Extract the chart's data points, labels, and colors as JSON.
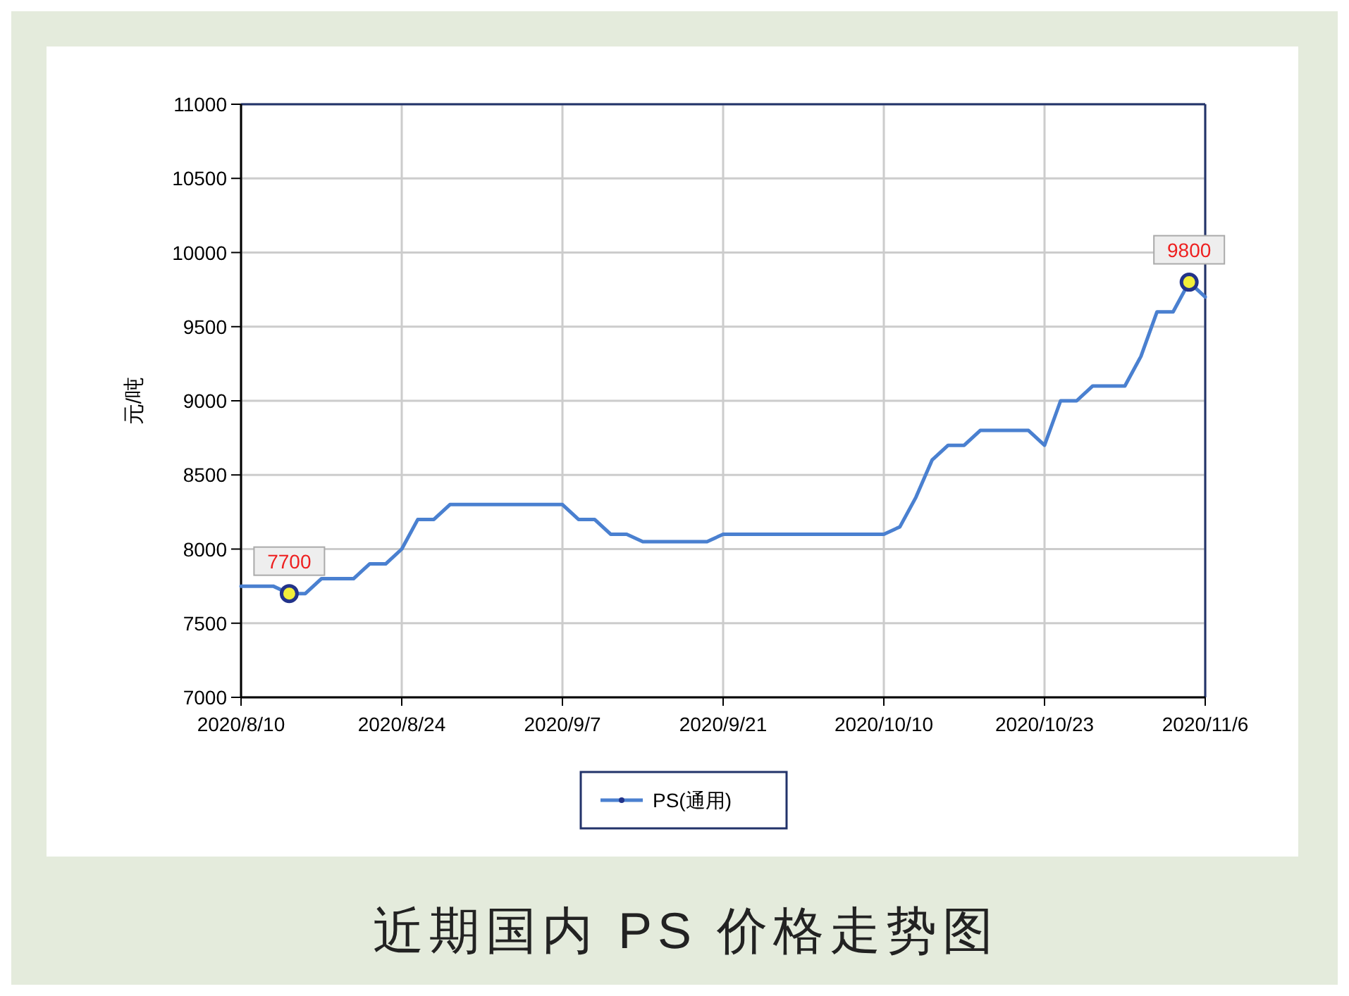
{
  "chart_data": {
    "type": "line",
    "title": "近期国内 PS 价格走势图",
    "ylabel": "元/吨",
    "categories": [
      "2020/8/10",
      null,
      null,
      null,
      null,
      null,
      null,
      null,
      null,
      null,
      "2020/8/24",
      null,
      null,
      null,
      null,
      null,
      null,
      null,
      null,
      null,
      "2020/9/7",
      null,
      null,
      null,
      null,
      null,
      null,
      null,
      null,
      null,
      "2020/9/21",
      null,
      null,
      null,
      null,
      null,
      null,
      null,
      null,
      null,
      "2020/10/10",
      null,
      null,
      null,
      null,
      null,
      null,
      null,
      null,
      null,
      "2020/10/23",
      null,
      null,
      null,
      null,
      null,
      null,
      null,
      null,
      null,
      "2020/11/6"
    ],
    "series": [
      {
        "name": "PS(通用)",
        "color": "#4a80d0",
        "values": [
          7750,
          7750,
          7750,
          7700,
          7700,
          7800,
          7800,
          7800,
          7900,
          7900,
          8000,
          8200,
          8200,
          8300,
          8300,
          8300,
          8300,
          8300,
          8300,
          8300,
          8300,
          8200,
          8200,
          8100,
          8100,
          8050,
          8050,
          8050,
          8050,
          8050,
          8100,
          8100,
          8100,
          8100,
          8100,
          8100,
          8100,
          8100,
          8100,
          8100,
          8100,
          8150,
          8350,
          8600,
          8700,
          8700,
          8800,
          8800,
          8800,
          8800,
          8700,
          9000,
          9000,
          9100,
          9100,
          9100,
          9300,
          9600,
          9600,
          9800,
          9700
        ],
        "value_labels": [
          null,
          null,
          null,
          "7700",
          null,
          null,
          null,
          null,
          null,
          null,
          null,
          null,
          null,
          null,
          null,
          null,
          null,
          null,
          null,
          null,
          null,
          null,
          null,
          null,
          null,
          null,
          null,
          null,
          null,
          null,
          null,
          null,
          null,
          null,
          null,
          null,
          null,
          null,
          null,
          null,
          null,
          null,
          null,
          null,
          null,
          null,
          null,
          null,
          null,
          null,
          null,
          null,
          null,
          null,
          null,
          null,
          null,
          null,
          null,
          "9800",
          null
        ]
      }
    ],
    "ylim": [
      7000,
      11000
    ],
    "yticks": [
      7000,
      7500,
      8000,
      8500,
      9000,
      9500,
      10000,
      10500,
      11000
    ],
    "grid": true,
    "legend": "bottom",
    "line_style": "solid"
  }
}
